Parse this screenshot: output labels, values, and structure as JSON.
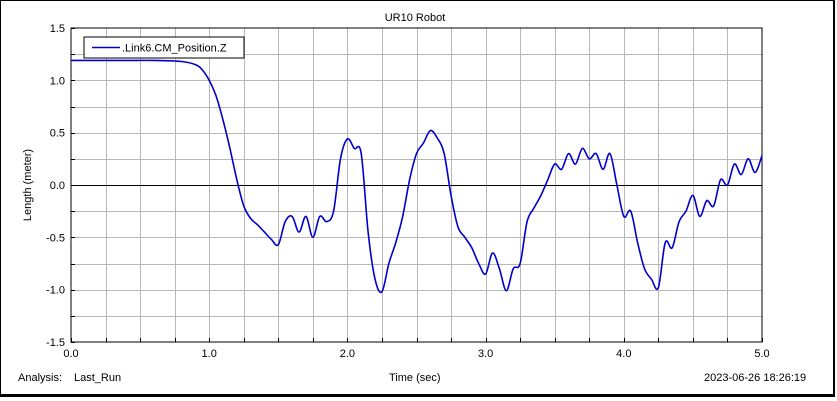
{
  "footer": {
    "analysis_label": "Analysis:",
    "analysis_name": "Last_Run",
    "timestamp": "2023-06-26 18:26:19"
  },
  "chart_data": {
    "type": "line",
    "title": "UR10 Robot",
    "xlabel": "Time (sec)",
    "ylabel": "Length (meter)",
    "xlim": [
      0.0,
      5.0
    ],
    "ylim": [
      -1.5,
      1.5
    ],
    "x_ticks": [
      "0.0",
      "1.0",
      "2.0",
      "3.0",
      "4.0",
      "5.0"
    ],
    "y_ticks": [
      "1.5",
      "1.0",
      "0.5",
      "0.0",
      "-0.5",
      "-1.0",
      "-1.5"
    ],
    "grid": true,
    "zero_line": true,
    "legend_position": "top-left",
    "colors": {
      "series": "#0000cc",
      "grid": "#b8b8b8",
      "axis": "#000000"
    },
    "series": [
      {
        "name": ".Link6.CM_Position.Z",
        "x": [
          0.0,
          0.2,
          0.4,
          0.6,
          0.8,
          0.9,
          0.95,
          1.0,
          1.05,
          1.1,
          1.15,
          1.2,
          1.25,
          1.3,
          1.35,
          1.4,
          1.45,
          1.5,
          1.55,
          1.6,
          1.65,
          1.7,
          1.75,
          1.8,
          1.85,
          1.9,
          1.95,
          2.0,
          2.05,
          2.1,
          2.15,
          2.2,
          2.25,
          2.3,
          2.35,
          2.4,
          2.45,
          2.5,
          2.55,
          2.6,
          2.65,
          2.7,
          2.75,
          2.8,
          2.85,
          2.9,
          2.95,
          3.0,
          3.05,
          3.1,
          3.15,
          3.2,
          3.25,
          3.3,
          3.35,
          3.4,
          3.45,
          3.5,
          3.55,
          3.6,
          3.65,
          3.7,
          3.75,
          3.8,
          3.85,
          3.9,
          3.95,
          4.0,
          4.05,
          4.1,
          4.15,
          4.2,
          4.25,
          4.3,
          4.35,
          4.4,
          4.45,
          4.5,
          4.55,
          4.6,
          4.65,
          4.7,
          4.75,
          4.8,
          4.85,
          4.9,
          4.95,
          5.0
        ],
        "y": [
          1.19,
          1.19,
          1.19,
          1.19,
          1.18,
          1.15,
          1.1,
          1.0,
          0.85,
          0.62,
          0.35,
          0.05,
          -0.2,
          -0.32,
          -0.38,
          -0.45,
          -0.52,
          -0.57,
          -0.35,
          -0.3,
          -0.45,
          -0.3,
          -0.5,
          -0.3,
          -0.35,
          -0.25,
          0.25,
          0.44,
          0.35,
          0.3,
          -0.45,
          -0.9,
          -1.02,
          -0.75,
          -0.55,
          -0.3,
          0.05,
          0.3,
          0.4,
          0.52,
          0.45,
          0.3,
          -0.1,
          -0.4,
          -0.5,
          -0.6,
          -0.75,
          -0.85,
          -0.65,
          -0.8,
          -1.01,
          -0.8,
          -0.75,
          -0.35,
          -0.22,
          -0.1,
          0.05,
          0.2,
          0.15,
          0.3,
          0.2,
          0.35,
          0.25,
          0.3,
          0.15,
          0.3,
          0.0,
          -0.3,
          -0.25,
          -0.55,
          -0.8,
          -0.9,
          -0.98,
          -0.55,
          -0.6,
          -0.35,
          -0.25,
          -0.1,
          -0.3,
          -0.15,
          -0.2,
          0.05,
          0.0,
          0.2,
          0.1,
          0.25,
          0.12,
          0.28
        ]
      }
    ]
  }
}
